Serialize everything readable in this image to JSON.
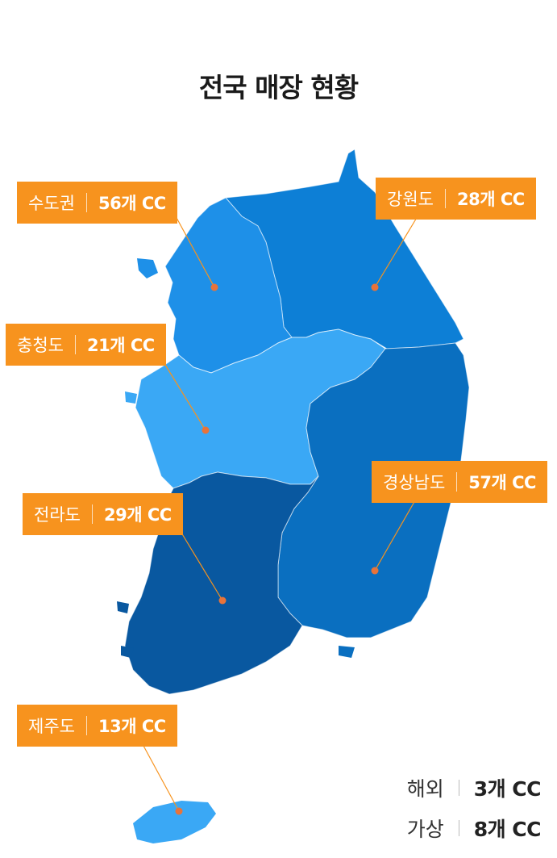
{
  "title": "전국 매장 현황",
  "regions": {
    "sudogwon": {
      "name": "수도권",
      "count": "56개 CC",
      "color": "#1e90e8"
    },
    "gangwon": {
      "name": "강원도",
      "count": "28개 CC",
      "color": "#0d7fd6"
    },
    "chungcheong": {
      "name": "충청도",
      "count": "21개 CC",
      "color": "#3aa8f5"
    },
    "gyeongsang": {
      "name": "경상남도",
      "count": "57개 CC",
      "color": "#0a6fc0"
    },
    "jeolla": {
      "name": "전라도",
      "count": "29개 CC",
      "color": "#0958a0"
    },
    "jeju": {
      "name": "제주도",
      "count": "13개 CC",
      "color": "#3aa8f5"
    }
  },
  "extra": {
    "overseas": {
      "name": "해외",
      "count": "3개 CC"
    },
    "virtual": {
      "name": "가상",
      "count": "8개 CC"
    }
  },
  "accent_color": "#f7931e",
  "marker_color": "#e8733a"
}
